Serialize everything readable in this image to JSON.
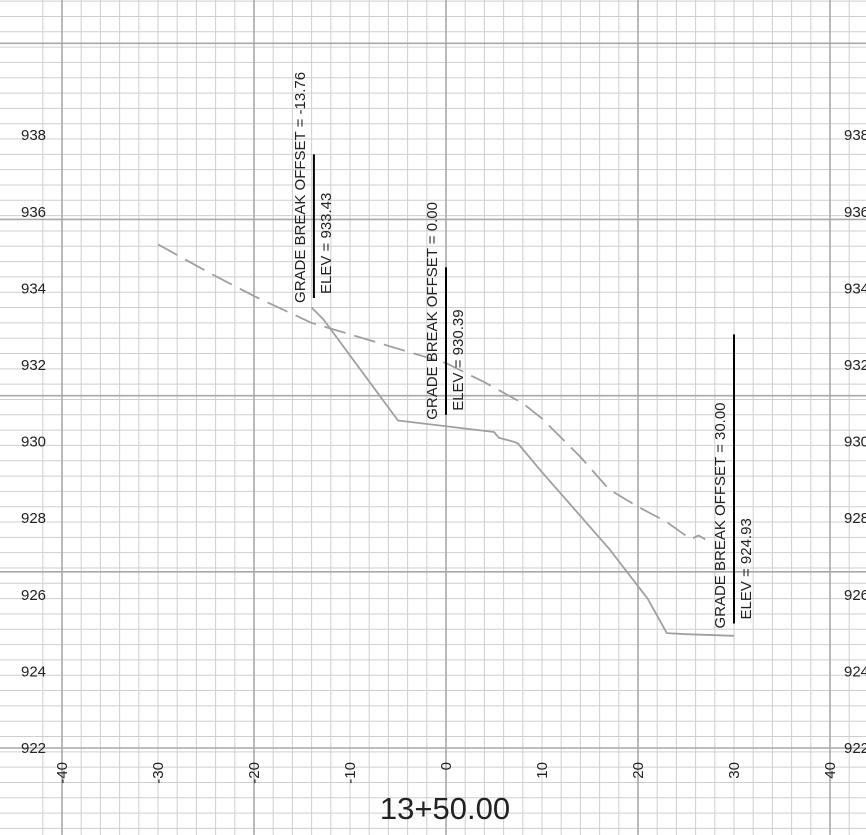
{
  "station_label": "13+50.00",
  "colors": {
    "minor_grid": "#cfcfcf",
    "major_grid": "#a9a9a9",
    "profile_line": "#a0a0a0",
    "marker_line": "#000000",
    "text": "#222222"
  },
  "chart_data": {
    "type": "line",
    "xlim": [
      -40,
      40
    ],
    "ylim": [
      922,
      938
    ],
    "x_ticks": [
      "-40",
      "-30",
      "-20",
      "-10",
      "0",
      "10",
      "20",
      "30",
      "40"
    ],
    "y_ticks_left": [
      "922",
      "924",
      "926",
      "928",
      "930",
      "932",
      "934",
      "936",
      "938"
    ],
    "y_ticks_right": [
      "922",
      "924",
      "926",
      "928",
      "930",
      "932",
      "934",
      "936",
      "938"
    ],
    "grid": true,
    "series": [
      {
        "style": "solid",
        "points": [
          [
            -14,
            933.5
          ],
          [
            -12.8,
            933.2
          ],
          [
            -5,
            930.55
          ],
          [
            5,
            930.25
          ],
          [
            5.5,
            930.1
          ],
          [
            7,
            930.0
          ],
          [
            7.5,
            929.95
          ],
          [
            10,
            929.2
          ],
          [
            17,
            927.2
          ],
          [
            21,
            925.9
          ],
          [
            23,
            925.0
          ],
          [
            25,
            924.97
          ],
          [
            30,
            924.93
          ]
        ]
      },
      {
        "style": "dashed",
        "points": [
          [
            -30,
            935.15
          ],
          [
            -24.6,
            934.4
          ],
          [
            -20,
            933.8
          ],
          [
            -14,
            933.1
          ],
          [
            -12,
            932.95
          ],
          [
            0,
            932.05
          ],
          [
            4,
            931.55
          ],
          [
            8,
            931.0
          ],
          [
            10,
            930.6
          ],
          [
            14,
            929.6
          ],
          [
            17,
            928.75
          ],
          [
            20,
            928.3
          ],
          [
            23,
            927.9
          ],
          [
            25.5,
            927.45
          ],
          [
            26.3,
            927.55
          ],
          [
            27,
            927.45
          ]
        ]
      }
    ],
    "annotations": [
      {
        "offset": -13.76,
        "line_top": 937.5,
        "line_bottom": 933.75,
        "text_line1": "GRADE BREAK OFFSET = -13.76",
        "text_line2": "ELEV =  933.43"
      },
      {
        "offset": 0.0,
        "line_top": 934.55,
        "line_bottom": 930.7,
        "text_line1": "GRADE BREAK OFFSET = 0.00",
        "text_line2": "ELEV =  930.39"
      },
      {
        "offset": 30.0,
        "line_top": 932.8,
        "line_bottom": 925.25,
        "text_line1": "GRADE BREAK OFFSET = 30.00",
        "text_line2": "ELEV =  924.93"
      }
    ]
  }
}
